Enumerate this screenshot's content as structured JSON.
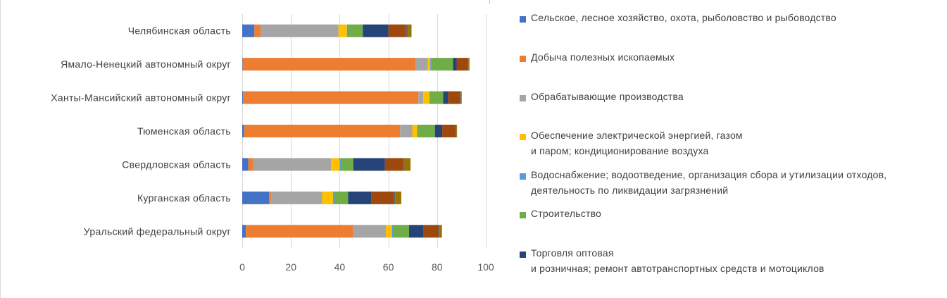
{
  "chart_data": {
    "type": "bar",
    "orientation": "horizontal",
    "stacked": true,
    "title": "",
    "xlabel": "",
    "ylabel": "",
    "xlim": [
      0,
      100
    ],
    "xticks": [
      "0",
      "20",
      "40",
      "60",
      "80",
      "100"
    ],
    "grid": true,
    "legend_position": "right",
    "categories": [
      "Челябинская область",
      "Ямало-Ненецкий автономный округ",
      "Ханты-Мансийский автономный округ",
      "Тюменская область",
      "Свердловская область",
      "Курганская область",
      "Уральский федеральный округ"
    ],
    "series": [
      {
        "name": "Сельское, лесное хозяйство, охота, рыболовство и рыбоводство",
        "color": "#4472c4",
        "values": [
          5.0,
          0.2,
          0.3,
          0.8,
          2.5,
          11.0,
          1.5
        ]
      },
      {
        "name": "Добыча полезных ископаемых",
        "color": "#ed7d31",
        "values": [
          2.5,
          71.0,
          72.0,
          64.0,
          2.0,
          0.8,
          44.0
        ]
      },
      {
        "name": "Обрабатывающие  производства",
        "color": "#a5a5a5",
        "values": [
          32.0,
          5.0,
          2.0,
          5.0,
          32.0,
          21.0,
          13.5
        ]
      },
      {
        "name": "Обеспечение  электрической энергией, газом\nи паром; кондиционирование  воздуха",
        "color": "#ffc000",
        "values": [
          3.5,
          1.0,
          2.5,
          2.0,
          3.5,
          4.5,
          2.5
        ]
      },
      {
        "name": "Водоснабжение;  водоотведение,  организация сбора и утилизации отходов,\nдеятельность по ликвидации  загрязнений",
        "color": "#5b9bd5",
        "values": [
          0.5,
          0.3,
          0.2,
          0.3,
          0.6,
          0.7,
          0.5
        ]
      },
      {
        "name": "Строительство",
        "color": "#70ad47",
        "values": [
          6.0,
          9.0,
          5.5,
          7.0,
          5.0,
          5.5,
          6.5
        ]
      },
      {
        "name": "Торговля оптовая\nи розничная;  ремонт автотранспортных средств и мотоциклов",
        "color": "#264478",
        "values": [
          10.5,
          1.5,
          2.0,
          3.0,
          13.0,
          9.5,
          6.0
        ]
      },
      {
        "name": "",
        "color": "#9e480e",
        "values": [
          7.0,
          4.5,
          5.0,
          5.5,
          7.5,
          9.0,
          6.0
        ]
      },
      {
        "name": "",
        "color": "#636363",
        "values": [
          1.0,
          0.3,
          0.3,
          0.3,
          0.5,
          0.8,
          0.5
        ]
      },
      {
        "name": "",
        "color": "#997300",
        "values": [
          1.5,
          0.5,
          0.3,
          0.3,
          2.5,
          2.5,
          1.0
        ]
      }
    ]
  },
  "legend": {
    "items": [
      {
        "label": "Сельское, лесное хозяйство, охота, рыболовство и рыбоводство",
        "color": "#4472c4"
      },
      {
        "label": "Добыча полезных ископаемых",
        "color": "#ed7d31"
      },
      {
        "label": "Обрабатывающие  производства",
        "color": "#a5a5a5"
      },
      {
        "label": "Обеспечение  электрической энергией, газом\nи паром; кондиционирование  воздуха",
        "color": "#ffc000"
      },
      {
        "label": "Водоснабжение;  водоотведение,  организация сбора и утилизации отходов,\nдеятельность по ликвидации  загрязнений",
        "color": "#5b9bd5"
      },
      {
        "label": "Строительство",
        "color": "#70ad47"
      },
      {
        "label": "Торговля оптовая\nи розничная;  ремонт автотранспортных средств и мотоциклов",
        "color": "#264478"
      }
    ]
  }
}
